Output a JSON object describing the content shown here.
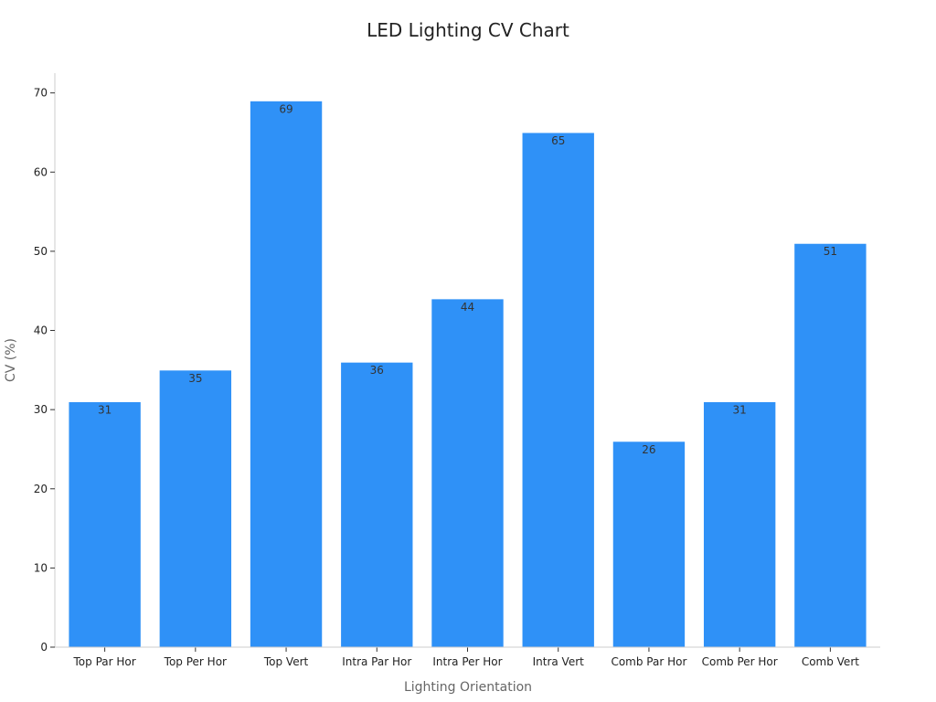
{
  "chart_data": {
    "type": "bar",
    "title": "LED Lighting CV Chart",
    "xlabel": "Lighting Orientation",
    "ylabel": "CV (%)",
    "categories": [
      "Top Par Hor",
      "Top Per Hor",
      "Top Vert",
      "Intra Par Hor",
      "Intra Per Hor",
      "Intra Vert",
      "Comb Par Hor",
      "Comb Per Hor",
      "Comb Vert"
    ],
    "values": [
      31,
      35,
      69,
      36,
      44,
      65,
      26,
      31,
      51
    ],
    "ylim": [
      0,
      72.5
    ],
    "yticks": [
      0,
      10,
      20,
      30,
      40,
      50,
      60,
      70
    ],
    "grid": false,
    "colors": {
      "bar": "#2f91f7",
      "bar_edge": "#ffffff"
    }
  }
}
